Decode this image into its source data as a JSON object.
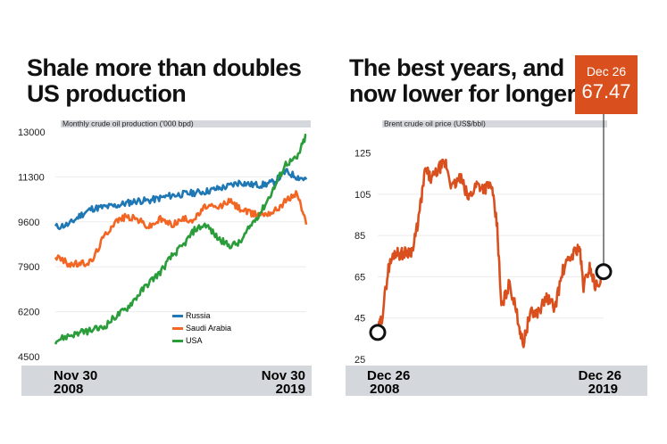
{
  "left_title": "Shale more than doubles US production",
  "right_title": "The best years, and now lower for longer",
  "callout": {
    "date": "Dec 26",
    "value": "67.47"
  },
  "colors": {
    "russia": "#1f77b4",
    "saudi": "#f26522",
    "usa": "#2a9d3a",
    "brent": "#d9501e",
    "band": "#d4d8dc"
  },
  "chart_data": [
    {
      "type": "line",
      "title": "Shale more than doubles US production",
      "ylabel": "Monthly crude oil production ('000 bpd)",
      "ylim": [
        4500,
        13000
      ],
      "yticks": [
        "13000",
        "11300",
        "9600",
        "7900",
        "6200",
        "4500"
      ],
      "x_start_label": [
        "Nov 30",
        "2008"
      ],
      "x_end_label": [
        "Nov 30",
        "2019"
      ],
      "x": [
        2008.9,
        2009.5,
        2010.0,
        2010.5,
        2011.0,
        2011.5,
        2012.0,
        2012.5,
        2013.0,
        2013.5,
        2014.0,
        2014.5,
        2015.0,
        2015.5,
        2016.0,
        2016.5,
        2017.0,
        2017.5,
        2018.0,
        2018.5,
        2019.0,
        2019.5,
        2019.9
      ],
      "legend_position": "bottom-right",
      "series": [
        {
          "name": "Russia",
          "color": "#1f77b4",
          "values": [
            9400,
            9500,
            9850,
            10100,
            10150,
            10200,
            10300,
            10400,
            10400,
            10500,
            10600,
            10650,
            10700,
            10750,
            10850,
            10950,
            11100,
            11000,
            11000,
            11100,
            11500,
            11300,
            11200
          ]
        },
        {
          "name": "Saudi Arabia",
          "color": "#f26522",
          "values": [
            8300,
            8000,
            8000,
            8100,
            9000,
            9600,
            9800,
            9700,
            9400,
            9700,
            9500,
            9700,
            9700,
            10200,
            10100,
            10400,
            10100,
            9900,
            9900,
            10000,
            10400,
            10700,
            9500
          ]
        },
        {
          "name": "USA",
          "color": "#2a9d3a",
          "values": [
            5100,
            5300,
            5400,
            5500,
            5600,
            6000,
            6300,
            6800,
            7300,
            7700,
            8300,
            8700,
            9300,
            9500,
            9000,
            8700,
            8800,
            9500,
            10100,
            10900,
            11800,
            12000,
            12900
          ]
        }
      ]
    },
    {
      "type": "line",
      "title": "The best years, and now lower for longer",
      "ylabel": "Brent crude oil price (US$/bbl)",
      "ylim": [
        25,
        130
      ],
      "yticks": [
        "125",
        "105",
        "85",
        "65",
        "45",
        "25"
      ],
      "x_start_label": [
        "Dec 26",
        "2008"
      ],
      "x_end_label": [
        "Dec 26",
        "2019"
      ],
      "x": [
        2008.98,
        2009.2,
        2009.5,
        2009.8,
        2010.1,
        2010.4,
        2010.7,
        2011.0,
        2011.3,
        2011.6,
        2012.0,
        2012.3,
        2012.6,
        2013.0,
        2013.4,
        2013.8,
        2014.2,
        2014.5,
        2014.8,
        2015.0,
        2015.4,
        2015.8,
        2016.05,
        2016.4,
        2016.8,
        2017.2,
        2017.6,
        2018.0,
        2018.4,
        2018.8,
        2019.0,
        2019.3,
        2019.6,
        2019.98
      ],
      "series": [
        {
          "name": "Brent",
          "color": "#d9501e",
          "values": [
            38,
            46,
            69,
            77,
            76,
            77,
            78,
            95,
            117,
            112,
            118,
            120,
            108,
            113,
            103,
            110,
            108,
            110,
            89,
            50,
            62,
            45,
            32,
            47,
            48,
            55,
            50,
            68,
            75,
            80,
            60,
            70,
            60,
            67.47
          ]
        }
      ]
    }
  ]
}
